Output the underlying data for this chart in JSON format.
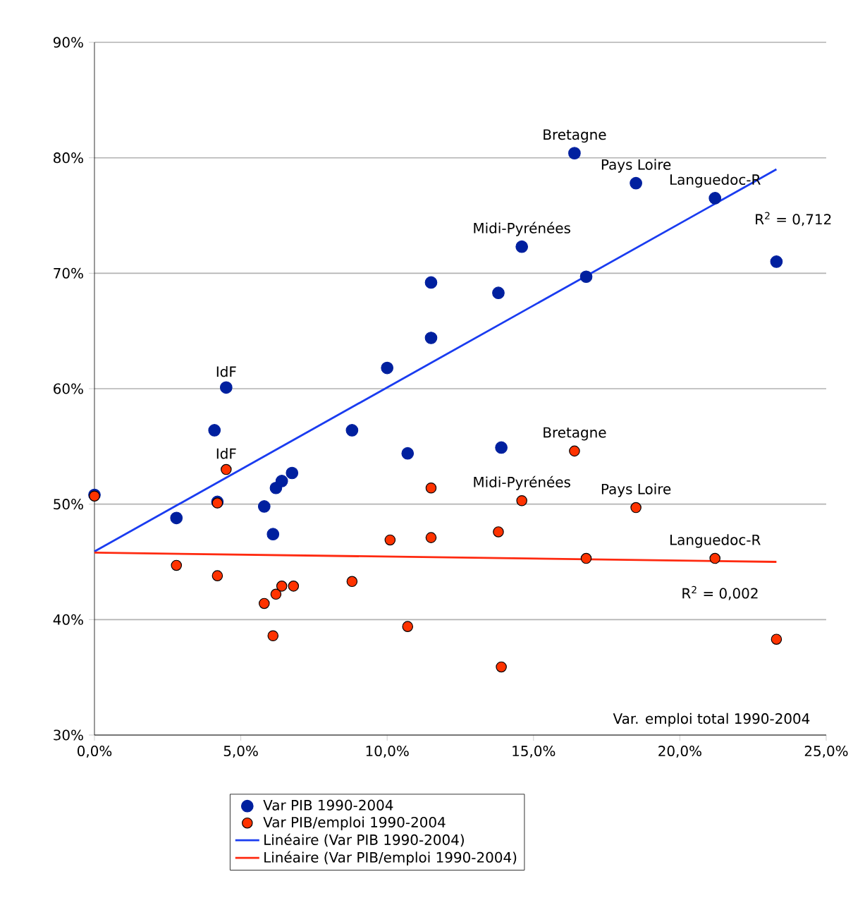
{
  "chart_data": {
    "type": "scatter",
    "xlabel": "Var. emploi total 1990-2004",
    "marker": "circle",
    "grid": "y",
    "legend": "bottom",
    "xlim": [
      0,
      25
    ],
    "ylim": [
      30,
      90
    ],
    "xticks": [
      {
        "value": 0,
        "label": "0,0%"
      },
      {
        "value": 5,
        "label": "5,0%"
      },
      {
        "value": 10,
        "label": "10,0%"
      },
      {
        "value": 15,
        "label": "15,0%"
      },
      {
        "value": 20,
        "label": "20,0%"
      },
      {
        "value": 25,
        "label": "25,0%"
      }
    ],
    "yticks": [
      {
        "value": 30,
        "label": "30%"
      },
      {
        "value": 40,
        "label": "40%"
      },
      {
        "value": 50,
        "label": "50%"
      },
      {
        "value": 60,
        "label": "60%"
      },
      {
        "value": 70,
        "label": "70%"
      },
      {
        "value": 80,
        "label": "80%"
      },
      {
        "value": 90,
        "label": "90%"
      }
    ],
    "series": [
      {
        "name": "Var PIB 1990-2004",
        "color": "#00209f",
        "x": [
          0,
          2.8,
          4.1,
          4.5,
          4.2,
          5.8,
          6.1,
          6.2,
          6.4,
          6.75,
          8.8,
          10.0,
          10.7,
          11.5,
          11.5,
          13.8,
          13.9,
          14.6,
          16.4,
          16.8,
          18.5,
          21.2,
          23.3
        ],
        "values": [
          50.8,
          48.8,
          56.4,
          60.1,
          50.2,
          49.8,
          47.4,
          51.4,
          52.0,
          52.7,
          56.4,
          61.8,
          54.4,
          69.2,
          64.4,
          68.3,
          54.9,
          72.3,
          80.4,
          69.7,
          77.8,
          76.5,
          71.0
        ]
      },
      {
        "name": "Var PIB/emploi 1990-2004",
        "color": "#ff3300",
        "x": [
          0,
          2.8,
          4.2,
          4.5,
          4.2,
          5.8,
          6.1,
          6.2,
          6.4,
          6.8,
          8.8,
          10.1,
          10.7,
          11.5,
          11.5,
          13.8,
          13.9,
          14.6,
          16.4,
          16.8,
          18.5,
          21.2,
          23.3
        ],
        "values": [
          50.7,
          44.7,
          50.1,
          53.0,
          43.8,
          41.4,
          38.6,
          42.2,
          42.9,
          42.9,
          43.3,
          46.9,
          39.4,
          51.4,
          47.1,
          47.6,
          35.9,
          50.3,
          54.6,
          45.3,
          49.7,
          45.3,
          38.3
        ]
      },
      {
        "name": "Linéaire (Var PIB 1990-2004)",
        "type": "line",
        "marker": "none",
        "color": "#1a3cf0",
        "x": [
          0,
          23.3
        ],
        "values": [
          45.9,
          79.0
        ]
      },
      {
        "name": "Linéaire (Var PIB/emploi 1990-2004)",
        "type": "line",
        "marker": "none",
        "color": "#ff2a10",
        "x": [
          0,
          23.3
        ],
        "values": [
          45.8,
          45.0
        ]
      }
    ],
    "annotations": [
      {
        "text": "IdF",
        "x": 4.5,
        "y": 60.1
      },
      {
        "text": "Bretagne",
        "x": 16.4,
        "y": 80.4
      },
      {
        "text": "Pays Loire",
        "x": 18.5,
        "y": 77.8
      },
      {
        "text": "Languedoc-R",
        "x": 21.2,
        "y": 76.5
      },
      {
        "text": "Midi-Pyrénées",
        "x": 14.6,
        "y": 72.3
      },
      "R$^{2}$ = 0,712",
      {
        "text": "IdF",
        "x": 4.5,
        "y": 53.0
      },
      {
        "text": "Bretagne",
        "x": 16.4,
        "y": 54.6
      },
      {
        "text": "Midi-Pyrénées",
        "x": 14.6,
        "y": 50.3
      },
      {
        "text": "Pays Loire",
        "x": 18.5,
        "y": 49.7
      },
      {
        "text": "Languedoc-R",
        "x": 21.2,
        "y": 45.3
      },
      "R$^{2}$ = 0,002"
    ]
  }
}
